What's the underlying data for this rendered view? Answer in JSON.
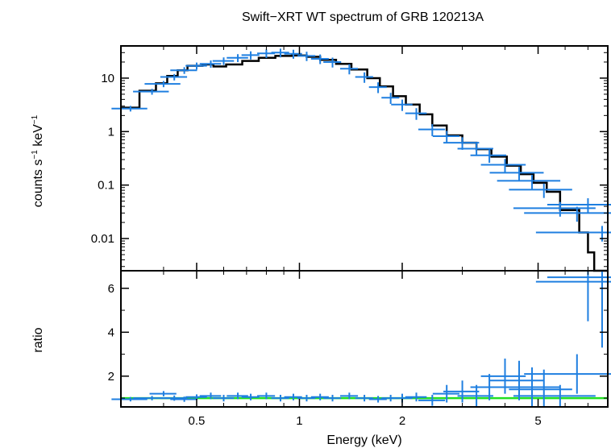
{
  "chart_data": [
    {
      "type": "scatter",
      "title": "Swift−XRT WT spectrum of GRB 120213A",
      "ylabel_main": "counts s",
      "ylabel_sup1": "−1",
      "ylabel_mid": " keV",
      "ylabel_sup2": "−1",
      "xscale": "log",
      "yscale": "log",
      "xlim": [
        0.3,
        8.0
      ],
      "ylim": [
        0.0025,
        40
      ],
      "y_ticks": [
        {
          "value": 10,
          "label": "10"
        },
        {
          "value": 1,
          "label": "1"
        },
        {
          "value": 0.1,
          "label": "0.1"
        },
        {
          "value": 0.01,
          "label": "0.01"
        }
      ],
      "series": [
        {
          "kind": "data",
          "color": "#1f7fe0",
          "points": [
            [
              0.32,
              2.7,
              0.02
            ],
            [
              0.37,
              5.6,
              0.02
            ],
            [
              0.4,
              7.8,
              0.02
            ],
            [
              0.43,
              10.5,
              0.015
            ],
            [
              0.46,
              14,
              0.015
            ],
            [
              0.5,
              17,
              0.012
            ],
            [
              0.55,
              18.5,
              0.012
            ],
            [
              0.6,
              21,
              0.012
            ],
            [
              0.66,
              24,
              0.012
            ],
            [
              0.72,
              27,
              0.01
            ],
            [
              0.8,
              29,
              0.01
            ],
            [
              0.88,
              30,
              0.01
            ],
            [
              0.96,
              28.5,
              0.01
            ],
            [
              1.05,
              26,
              0.01
            ],
            [
              1.15,
              23,
              0.01
            ],
            [
              1.25,
              20,
              0.01
            ],
            [
              1.4,
              15,
              0.01
            ],
            [
              1.55,
              10.5,
              0.01
            ],
            [
              1.7,
              6.8,
              0.01
            ],
            [
              1.85,
              4.3,
              0.01
            ],
            [
              2.0,
              3.2,
              0.012
            ],
            [
              2.2,
              2.2,
              0.012
            ],
            [
              2.45,
              1.1,
              0.015
            ],
            [
              2.7,
              0.82,
              0.015
            ],
            [
              3.0,
              0.62,
              0.02
            ],
            [
              3.3,
              0.48,
              0.02
            ],
            [
              3.6,
              0.36,
              0.02
            ],
            [
              4.0,
              0.24,
              0.025
            ],
            [
              4.4,
              0.17,
              0.03
            ],
            [
              4.8,
              0.12,
              0.035
            ],
            [
              5.2,
              0.082,
              0.035
            ],
            [
              5.8,
              0.037,
              0.045
            ],
            [
              6.5,
              0.03,
              0.05
            ],
            [
              7.0,
              0.043,
              0.04
            ],
            [
              7.7,
              0.013,
              0.06
            ]
          ]
        },
        {
          "kind": "model",
          "color": "#000000",
          "steps": [
            [
              0.3,
              2.8
            ],
            [
              0.34,
              5.8
            ],
            [
              0.38,
              8.0
            ],
            [
              0.41,
              11.0
            ],
            [
              0.44,
              14.0
            ],
            [
              0.47,
              17.0
            ],
            [
              0.52,
              18.0
            ],
            [
              0.56,
              16.5
            ],
            [
              0.61,
              18.0
            ],
            [
              0.68,
              21.0
            ],
            [
              0.76,
              24.0
            ],
            [
              0.85,
              26.0
            ],
            [
              0.95,
              26.5
            ],
            [
              1.05,
              25.0
            ],
            [
              1.15,
              22.0
            ],
            [
              1.28,
              18.5
            ],
            [
              1.42,
              14.5
            ],
            [
              1.58,
              10.0
            ],
            [
              1.72,
              7.0
            ],
            [
              1.88,
              4.6
            ],
            [
              2.05,
              3.2
            ],
            [
              2.25,
              2.1
            ],
            [
              2.45,
              1.3
            ],
            [
              2.7,
              0.85
            ],
            [
              3.0,
              0.62
            ],
            [
              3.3,
              0.47
            ],
            [
              3.65,
              0.34
            ],
            [
              4.05,
              0.23
            ],
            [
              4.45,
              0.16
            ],
            [
              4.85,
              0.11
            ],
            [
              5.3,
              0.075
            ],
            [
              5.8,
              0.034
            ],
            [
              6.6,
              0.013
            ],
            [
              7.0,
              0.0055
            ],
            [
              7.3,
              0.0025
            ]
          ]
        }
      ]
    },
    {
      "type": "scatter",
      "xlabel": "Energy (keV)",
      "ylabel": "ratio",
      "xscale": "log",
      "xlim": [
        0.3,
        8.0
      ],
      "ylim": [
        0.6,
        6.8
      ],
      "x_ticks": [
        {
          "value": 0.5,
          "label": "0.5"
        },
        {
          "value": 1,
          "label": "1"
        },
        {
          "value": 2,
          "label": "2"
        },
        {
          "value": 5,
          "label": "5"
        }
      ],
      "y_ticks": [
        {
          "value": 2,
          "label": "2"
        },
        {
          "value": 4,
          "label": "4"
        },
        {
          "value": 6,
          "label": "6"
        }
      ],
      "reference_line": {
        "value": 1.0,
        "color": "#22e022"
      },
      "series": [
        {
          "kind": "data",
          "color": "#1f7fe0",
          "points": [
            [
              0.32,
              0.95,
              0.02,
              0.1
            ],
            [
              0.37,
              1.0,
              0.02,
              0.1
            ],
            [
              0.4,
              1.2,
              0.015,
              0.12
            ],
            [
              0.43,
              1.0,
              0.015,
              0.12
            ],
            [
              0.46,
              0.95,
              0.015,
              0.12
            ],
            [
              0.5,
              1.05,
              0.012,
              0.12
            ],
            [
              0.55,
              1.1,
              0.012,
              0.15
            ],
            [
              0.6,
              1.0,
              0.012,
              0.15
            ],
            [
              0.66,
              1.1,
              0.012,
              0.15
            ],
            [
              0.72,
              1.05,
              0.01,
              0.15
            ],
            [
              0.8,
              1.1,
              0.01,
              0.15
            ],
            [
              0.88,
              1.0,
              0.01,
              0.15
            ],
            [
              0.96,
              1.05,
              0.01,
              0.15
            ],
            [
              1.05,
              1.0,
              0.01,
              0.15
            ],
            [
              1.15,
              1.05,
              0.01,
              0.15
            ],
            [
              1.25,
              1.0,
              0.01,
              0.15
            ],
            [
              1.4,
              1.1,
              0.01,
              0.15
            ],
            [
              1.55,
              1.0,
              0.01,
              0.15
            ],
            [
              1.7,
              0.95,
              0.01,
              0.15
            ],
            [
              1.85,
              1.0,
              0.01,
              0.15
            ],
            [
              2.0,
              1.0,
              0.012,
              0.2
            ],
            [
              2.2,
              1.05,
              0.012,
              0.2
            ],
            [
              2.45,
              0.9,
              0.015,
              0.25
            ],
            [
              2.7,
              1.2,
              0.015,
              0.4
            ],
            [
              3.0,
              1.3,
              0.02,
              0.5
            ],
            [
              3.3,
              1.1,
              0.02,
              0.5
            ],
            [
              3.6,
              1.5,
              0.02,
              0.6
            ],
            [
              4.0,
              2.0,
              0.025,
              0.8
            ],
            [
              4.4,
              1.8,
              0.03,
              0.9
            ],
            [
              4.8,
              1.5,
              0.035,
              0.9
            ],
            [
              5.2,
              1.4,
              0.035,
              0.9
            ],
            [
              5.8,
              1.1,
              0.045,
              0.5
            ],
            [
              6.5,
              2.1,
              0.05,
              0.9
            ],
            [
              7.0,
              6.5,
              0.04,
              2.0
            ],
            [
              7.7,
              6.3,
              0.06,
              3.0
            ]
          ]
        }
      ]
    }
  ]
}
